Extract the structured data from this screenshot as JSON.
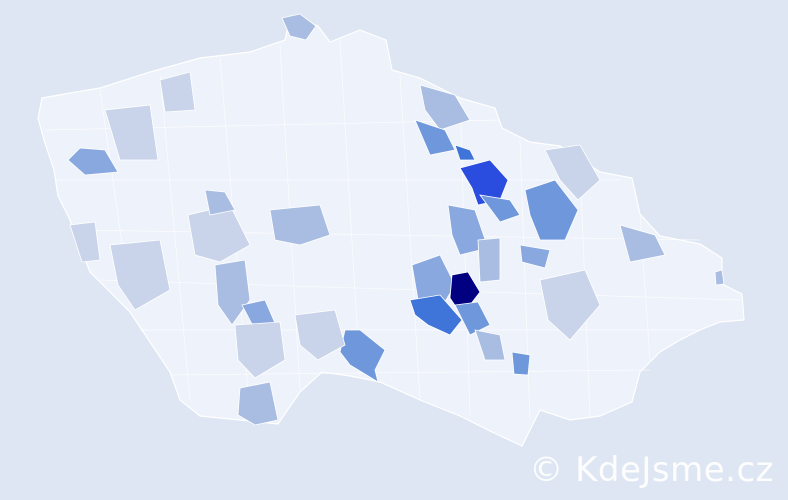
{
  "watermark": "© KdeJsme.cz",
  "colors": {
    "background": "#dde6f2",
    "lowest": "#eef2fa",
    "low": "#c9d4ea",
    "medium": "#a9bde3",
    "high": "#6f98dc",
    "higher": "#3f74d8",
    "very_high": "#2a4de0",
    "highest": "#000080"
  }
}
